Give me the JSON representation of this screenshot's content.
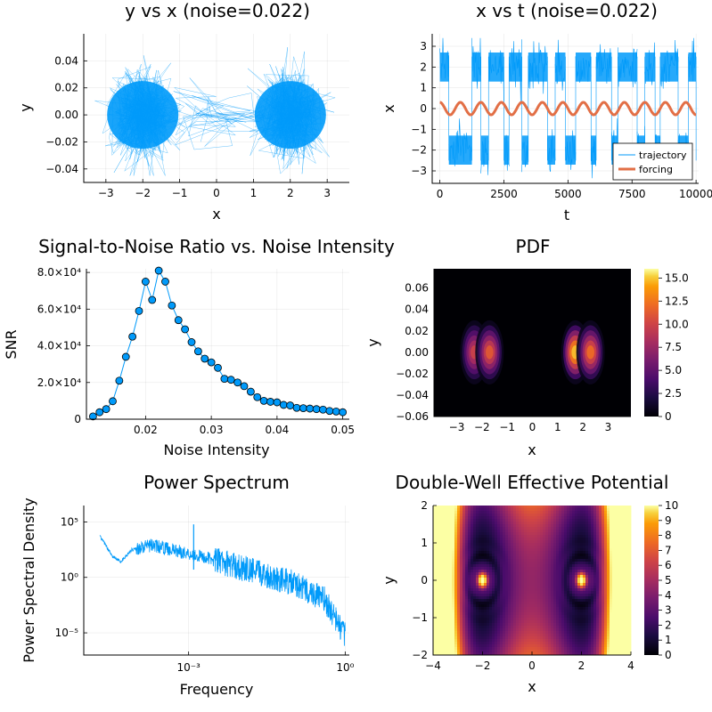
{
  "chart_data": [
    {
      "type": "scatter",
      "title": "y vs x (noise=0.022)",
      "xlabel": "x",
      "ylabel": "y",
      "xlim": [
        -3.6,
        3.6
      ],
      "ylim": [
        -0.05,
        0.06
      ],
      "xticks": [
        "−3",
        "−2",
        "−1",
        "0",
        "1",
        "2",
        "3"
      ],
      "yticks": [
        "−0.04",
        "−0.02",
        "0.00",
        "0.02",
        "0.04"
      ],
      "grid": true,
      "color": "#009AFA",
      "clusters": [
        {
          "center_x": -2.0,
          "center_y": 0.0,
          "spread_x": 0.55,
          "spread_y": 0.015
        },
        {
          "center_x": 2.0,
          "center_y": 0.0,
          "spread_x": 0.55,
          "spread_y": 0.015
        }
      ]
    },
    {
      "type": "line",
      "title": "x vs t (noise=0.022)",
      "xlabel": "t",
      "ylabel": "x",
      "xlim": [
        -300,
        10100
      ],
      "ylim": [
        -3.6,
        3.6
      ],
      "xticks": [
        "0",
        "2500",
        "5000",
        "7500",
        "10000"
      ],
      "yticks": [
        "−3",
        "−2",
        "−1",
        "0",
        "1",
        "2",
        "3"
      ],
      "grid": true,
      "legend": "bottom-right",
      "switch_times": [
        0,
        350,
        1250,
        1600,
        1900,
        2500,
        2700,
        3200,
        3450,
        4200,
        4500,
        4900,
        5300,
        5900,
        6100,
        6700,
        6950,
        7700,
        8000,
        8400,
        8600,
        9300,
        9700,
        10000
      ],
      "series": [
        {
          "name": "trajectory",
          "color": "#009AFA"
        },
        {
          "name": "forcing",
          "color": "#E26F46",
          "amplitude": 0.3,
          "period": 800
        }
      ]
    },
    {
      "type": "line",
      "title": "Signal-to-Noise Ratio vs. Noise Intensity",
      "xlabel": "Noise Intensity",
      "ylabel": "SNR",
      "xlim": [
        0.011,
        0.051
      ],
      "ylim": [
        0,
        82000
      ],
      "xticks": [
        "0.02",
        "0.03",
        "0.04",
        "0.05"
      ],
      "yticks": [
        "0",
        "2.0×10⁴",
        "4.0×10⁴",
        "6.0×10⁴",
        "8.0×10⁴"
      ],
      "grid": true,
      "color": "#009AFA",
      "x": [
        0.012,
        0.013,
        0.014,
        0.015,
        0.016,
        0.017,
        0.018,
        0.019,
        0.02,
        0.021,
        0.022,
        0.023,
        0.024,
        0.025,
        0.026,
        0.027,
        0.028,
        0.029,
        0.03,
        0.031,
        0.032,
        0.033,
        0.034,
        0.035,
        0.036,
        0.037,
        0.038,
        0.039,
        0.04,
        0.041,
        0.042,
        0.043,
        0.044,
        0.045,
        0.046,
        0.047,
        0.048,
        0.049,
        0.05
      ],
      "y": [
        1500,
        3800,
        5500,
        9800,
        21000,
        34000,
        45000,
        59000,
        75000,
        65000,
        81000,
        75000,
        62000,
        54000,
        49000,
        42000,
        37000,
        33000,
        31000,
        28000,
        22000,
        21500,
        20000,
        18000,
        15000,
        12000,
        10000,
        9500,
        9200,
        7800,
        7500,
        6200,
        6000,
        5800,
        5500,
        5200,
        4500,
        4200,
        3800
      ]
    },
    {
      "type": "heatmap",
      "title": "PDF",
      "xlabel": "x",
      "ylabel": "y",
      "xlim": [
        -3.9,
        3.9
      ],
      "ylim": [
        -0.06,
        0.078
      ],
      "xticks": [
        "−3",
        "−2",
        "−1",
        "0",
        "1",
        "2",
        "3"
      ],
      "yticks": [
        "−0.06",
        "−0.04",
        "−0.02",
        "0.00",
        "0.02",
        "0.04",
        "0.06"
      ],
      "colorbar_ticks": [
        "0",
        "2.5",
        "5.0",
        "7.5",
        "10.0",
        "12.5",
        "15.0"
      ],
      "clim": [
        0,
        16
      ],
      "peaks": [
        {
          "x": -2.3,
          "value": 9.5
        },
        {
          "x": -1.7,
          "value": 11
        },
        {
          "x": 1.7,
          "value": 15.5
        },
        {
          "x": 2.3,
          "value": 12
        }
      ]
    },
    {
      "type": "line",
      "title": "Power Spectrum",
      "xlabel": "Frequency",
      "ylabel": "Power Spectral Density",
      "xscale": "log",
      "yscale": "log",
      "xlim": [
        9.8e-06,
        1.2
      ],
      "ylim": [
        1e-07,
        3000000
      ],
      "xticks": [
        "10⁻³",
        "10⁰"
      ],
      "yticks": [
        "10⁻⁵",
        "10⁰",
        "10⁵"
      ],
      "grid": true,
      "color": "#009AFA",
      "trend": [
        [
          2e-05,
          5000
        ],
        [
          3.5e-05,
          80
        ],
        [
          5e-05,
          25
        ],
        [
          8e-05,
          300
        ],
        [
          0.0002,
          800
        ],
        [
          0.0005,
          300
        ],
        [
          0.003,
          40
        ],
        [
          0.02,
          3
        ],
        [
          0.1,
          0.3
        ],
        [
          0.4,
          0.01
        ],
        [
          1.0,
          5e-06
        ]
      ],
      "peak": {
        "x": 0.00125,
        "y": 60000
      }
    },
    {
      "type": "heatmap",
      "title": "Double-Well Effective Potential",
      "xlabel": "x",
      "ylabel": "y",
      "xlim": [
        -4,
        4
      ],
      "ylim": [
        -2,
        2
      ],
      "xticks": [
        "−4",
        "−2",
        "0",
        "2",
        "4"
      ],
      "yticks": [
        "−2",
        "−1",
        "0",
        "1",
        "2"
      ],
      "colorbar_ticks": [
        "0",
        "1",
        "2",
        "3",
        "4",
        "5",
        "6",
        "7",
        "8",
        "9",
        "10"
      ],
      "clim": [
        0,
        10
      ],
      "well_centers": [
        -2,
        2
      ]
    }
  ]
}
